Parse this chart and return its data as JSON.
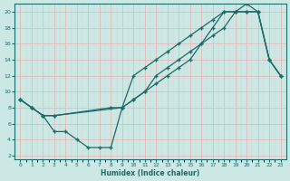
{
  "xlabel": "Humidex (Indice chaleur)",
  "bg_color": "#cce8e4",
  "grid_major_color": "#e8b0b0",
  "grid_minor_color": "#e0c8c8",
  "line_color": "#1a6b6b",
  "xlim": [
    -0.5,
    23.5
  ],
  "ylim": [
    1.5,
    21
  ],
  "xticks": [
    0,
    1,
    2,
    3,
    4,
    5,
    6,
    7,
    8,
    9,
    10,
    11,
    12,
    13,
    14,
    15,
    16,
    17,
    18,
    19,
    20,
    21,
    22,
    23
  ],
  "yticks": [
    2,
    4,
    6,
    8,
    10,
    12,
    14,
    16,
    18,
    20
  ],
  "line1_x": [
    0,
    1,
    2,
    3,
    4,
    5,
    6,
    7,
    8,
    9,
    10,
    11,
    12,
    13,
    14,
    15,
    16,
    17,
    18,
    19,
    20,
    21,
    22,
    23
  ],
  "line1_y": [
    9,
    8,
    7,
    5,
    5,
    4,
    3,
    3,
    3,
    8,
    12,
    13,
    14,
    15,
    16,
    17,
    18,
    19,
    20,
    20,
    20,
    20,
    14,
    12
  ],
  "line2_x": [
    0,
    1,
    2,
    3,
    9,
    10,
    11,
    12,
    13,
    14,
    15,
    16,
    17,
    18,
    19,
    20,
    21,
    22,
    23
  ],
  "line2_y": [
    9,
    8,
    7,
    7,
    8,
    9,
    10,
    11,
    12,
    13,
    14,
    16,
    18,
    20,
    20,
    20,
    20,
    14,
    12
  ],
  "line3_x": [
    0,
    1,
    2,
    3,
    8,
    9,
    10,
    11,
    12,
    13,
    14,
    15,
    16,
    17,
    18,
    19,
    20,
    21,
    22,
    23
  ],
  "line3_y": [
    9,
    8,
    7,
    7,
    8,
    8,
    9,
    10,
    12,
    13,
    14,
    15,
    16,
    17,
    18,
    20,
    21,
    20,
    14,
    12
  ]
}
